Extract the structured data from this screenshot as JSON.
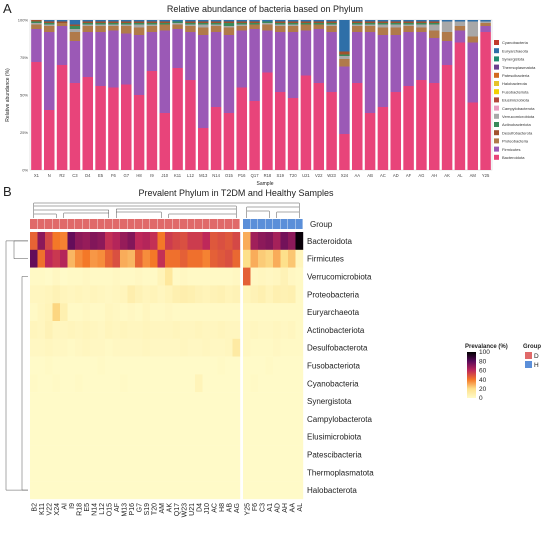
{
  "figure": {
    "panel_a_label": "A",
    "panel_b_label": "B"
  },
  "chart_data": [
    {
      "type": "bar",
      "stacked": true,
      "title": "Relative abundance of bacteria based on Phylum",
      "xlabel": "Sample",
      "ylabel": "Relative abundance (%)",
      "ylim": [
        0,
        100
      ],
      "yticks": [
        "0%",
        "25%",
        "50%",
        "75%",
        "100%"
      ],
      "categories": [
        "X1",
        "N",
        "R2",
        "C3",
        "D4",
        "E5",
        "F6",
        "G7",
        "H8",
        "I9",
        "J10",
        "K11",
        "L12",
        "M13",
        "N14",
        "O15",
        "P16",
        "Q17",
        "R18",
        "S19",
        "T20",
        "U21",
        "V22",
        "W23",
        "X24",
        "AA",
        "AB",
        "AC",
        "AD",
        "AF",
        "AG",
        "AH",
        "AK",
        "AL",
        "AM",
        "Y25"
      ],
      "legend_position": "right",
      "legend": [
        {
          "name": "Cyanobacteria",
          "color": "#c0392b"
        },
        {
          "name": "Euryarchaeota",
          "color": "#2e6fa8"
        },
        {
          "name": "Synergistota",
          "color": "#1f8a70"
        },
        {
          "name": "Thermoplasmatota",
          "color": "#6b3f8f"
        },
        {
          "name": "Patescibacteria",
          "color": "#d2691e"
        },
        {
          "name": "Halobacterota",
          "color": "#e6c229"
        },
        {
          "name": "Fusobacteriota",
          "color": "#f2d000"
        },
        {
          "name": "Elusimicrobiota",
          "color": "#b5473a"
        },
        {
          "name": "Campylobacterota",
          "color": "#e89bbf"
        },
        {
          "name": "Verrucomicrobiota",
          "color": "#a8a8a8"
        },
        {
          "name": "Actinobacteriota",
          "color": "#3a8a5a"
        },
        {
          "name": "Desulfobacterota",
          "color": "#a0522d"
        },
        {
          "name": "Proteobacteria",
          "color": "#b07a4a"
        },
        {
          "name": "Firmicutes",
          "color": "#9b59b6"
        },
        {
          "name": "Bacteroidota",
          "color": "#e8447a"
        }
      ],
      "series": [
        {
          "name": "Bacteroidota",
          "values": [
            72,
            40,
            70,
            58,
            62,
            56,
            55,
            57,
            50,
            66,
            38,
            68,
            60,
            28,
            42,
            38,
            55,
            46,
            65,
            52,
            48,
            63,
            58,
            52,
            24,
            58,
            38,
            42,
            52,
            56,
            60,
            58,
            70,
            85,
            45,
            92
          ]
        },
        {
          "name": "Firmicutes",
          "values": [
            22,
            52,
            26,
            28,
            30,
            36,
            38,
            34,
            40,
            26,
            55,
            26,
            32,
            62,
            50,
            52,
            38,
            48,
            28,
            40,
            44,
            30,
            36,
            40,
            45,
            34,
            54,
            48,
            38,
            36,
            32,
            30,
            16,
            8,
            40,
            4
          ]
        },
        {
          "name": "Proteobacteria",
          "values": [
            3,
            4,
            2,
            6,
            4,
            4,
            3,
            5,
            5,
            4,
            4,
            3,
            4,
            5,
            4,
            5,
            3,
            3,
            4,
            4,
            4,
            4,
            3,
            4,
            5,
            4,
            4,
            5,
            5,
            4,
            3,
            5,
            6,
            3,
            4,
            2
          ]
        },
        {
          "name": "Verrucomicrobiota",
          "values": [
            1,
            1,
            0,
            2,
            1,
            1,
            1,
            1,
            2,
            1,
            0,
            1,
            1,
            2,
            1,
            1,
            1,
            0,
            1,
            1,
            1,
            0,
            0,
            1,
            2,
            1,
            1,
            2,
            2,
            1,
            2,
            4,
            7,
            3,
            10,
            1
          ]
        },
        {
          "name": "Actinobacteriota",
          "values": [
            1,
            1,
            0,
            2,
            1,
            1,
            1,
            1,
            1,
            1,
            1,
            1,
            1,
            1,
            1,
            2,
            1,
            1,
            1,
            1,
            1,
            1,
            1,
            1,
            1,
            1,
            1,
            1,
            1,
            1,
            1,
            1,
            0,
            0,
            0,
            0
          ]
        },
        {
          "name": "Desulfobacterota",
          "values": [
            1,
            1,
            1,
            1,
            1,
            1,
            1,
            1,
            1,
            1,
            1,
            0,
            1,
            1,
            1,
            1,
            1,
            1,
            0,
            1,
            1,
            1,
            1,
            1,
            2,
            1,
            1,
            1,
            1,
            1,
            1,
            1,
            0,
            0,
            0,
            0
          ]
        },
        {
          "name": "Euryarchaeota",
          "values": [
            0,
            1,
            1,
            3,
            1,
            1,
            1,
            1,
            1,
            1,
            1,
            1,
            1,
            1,
            1,
            1,
            1,
            1,
            1,
            1,
            1,
            1,
            1,
            1,
            21,
            1,
            1,
            1,
            1,
            1,
            1,
            1,
            1,
            1,
            1,
            1
          ]
        }
      ]
    },
    {
      "type": "heatmap",
      "title": "Prevalent Phylum in T2DM and Healthy Samples",
      "columns": [
        "B2",
        "K11",
        "V22",
        "X24",
        "AI",
        "I9",
        "R18",
        "E5",
        "N14",
        "L12",
        "O15",
        "AF",
        "M13",
        "P16",
        "G7",
        "S19",
        "T20",
        "AM",
        "AK",
        "Q17",
        "W23",
        "U21",
        "D4",
        "J10",
        "AC",
        "H8",
        "AB",
        "AG",
        "Y25",
        "F6",
        "C3",
        "A1",
        "AD",
        "AH",
        "AA",
        "AL"
      ],
      "group_row_label": "Group",
      "groups": [
        "D",
        "D",
        "D",
        "D",
        "D",
        "D",
        "D",
        "D",
        "D",
        "D",
        "D",
        "D",
        "D",
        "D",
        "D",
        "D",
        "D",
        "D",
        "D",
        "D",
        "D",
        "D",
        "D",
        "D",
        "D",
        "D",
        "D",
        "D",
        "H",
        "H",
        "H",
        "H",
        "H",
        "H",
        "H",
        "H"
      ],
      "group_legend": {
        "title": "Group",
        "items": [
          {
            "name": "D",
            "color": "#e06a6a"
          },
          {
            "name": "H",
            "color": "#5b8fd9"
          }
        ]
      },
      "colorbar": {
        "title": "Prevalance (%)",
        "ticks": [
          0,
          20,
          40,
          60,
          80,
          100
        ]
      },
      "rows": [
        "Bacteroidota",
        "Firmicutes",
        "Verrucomicrobiota",
        "Proteobacteria",
        "Euryarchaeota",
        "Actinobacteriota",
        "Desulfobacterota",
        "Fusobacteriota",
        "Cyanobacteria",
        "Synergistota",
        "Campylobacterota",
        "Elusimicrobiota",
        "Patescibacteria",
        "Thermoplasmatota",
        "Halobacterota"
      ],
      "values": [
        [
          45,
          70,
          52,
          40,
          38,
          78,
          70,
          68,
          72,
          70,
          58,
          62,
          68,
          72,
          60,
          62,
          58,
          40,
          55,
          52,
          50,
          55,
          55,
          60,
          48,
          50,
          48,
          52,
          30,
          66,
          70,
          72,
          65,
          75,
          70,
          98
        ],
        [
          78,
          42,
          60,
          56,
          62,
          28,
          36,
          40,
          34,
          36,
          45,
          50,
          30,
          28,
          45,
          36,
          40,
          58,
          42,
          42,
          46,
          42,
          42,
          38,
          46,
          48,
          50,
          44,
          20,
          30,
          24,
          22,
          30,
          20,
          25,
          4
        ],
        [
          1,
          1,
          0,
          2,
          0,
          1,
          1,
          2,
          1,
          1,
          1,
          2,
          1,
          1,
          2,
          1,
          1,
          5,
          14,
          1,
          2,
          1,
          1,
          1,
          1,
          1,
          1,
          2,
          46,
          2,
          3,
          2,
          3,
          6,
          2,
          1
        ],
        [
          3,
          3,
          4,
          6,
          4,
          3,
          4,
          3,
          4,
          3,
          2,
          3,
          4,
          9,
          6,
          4,
          5,
          3,
          5,
          8,
          9,
          8,
          6,
          5,
          6,
          7,
          5,
          6,
          4,
          6,
          8,
          5,
          8,
          7,
          8,
          1
        ],
        [
          1,
          3,
          5,
          22,
          8,
          1,
          1,
          2,
          1,
          1,
          3,
          2,
          1,
          2,
          1,
          3,
          1,
          1,
          2,
          1,
          1,
          1,
          1,
          1,
          1,
          1,
          1,
          1,
          1,
          1,
          1,
          1,
          1,
          1,
          1,
          1
        ],
        [
          4,
          3,
          6,
          3,
          3,
          4,
          3,
          4,
          3,
          2,
          4,
          3,
          4,
          3,
          3,
          4,
          3,
          3,
          3,
          4,
          3,
          3,
          4,
          3,
          3,
          4,
          3,
          3,
          2,
          3,
          2,
          2,
          3,
          2,
          3,
          1
        ],
        [
          2,
          2,
          3,
          2,
          2,
          1,
          2,
          3,
          2,
          2,
          1,
          2,
          2,
          2,
          2,
          3,
          2,
          2,
          2,
          2,
          3,
          2,
          2,
          3,
          2,
          2,
          3,
          12,
          2,
          1,
          1,
          1,
          2,
          1,
          1,
          1
        ],
        [
          0,
          0,
          1,
          0,
          0,
          0,
          0,
          0,
          0,
          1,
          0,
          0,
          0,
          0,
          0,
          0,
          0,
          0,
          0,
          0,
          0,
          0,
          0,
          0,
          0,
          1,
          0,
          0,
          0,
          0,
          0,
          1,
          0,
          0,
          0,
          0
        ],
        [
          1,
          0,
          0,
          1,
          0,
          0,
          1,
          0,
          0,
          0,
          0,
          0,
          1,
          0,
          0,
          0,
          0,
          0,
          0,
          0,
          0,
          0,
          5,
          0,
          0,
          0,
          0,
          0,
          0,
          1,
          0,
          0,
          0,
          0,
          0,
          0
        ],
        [
          0,
          0,
          0,
          0,
          0,
          0,
          0,
          0,
          0,
          0,
          0,
          0,
          0,
          0,
          0,
          0,
          0,
          0,
          0,
          0,
          0,
          0,
          0,
          0,
          0,
          0,
          0,
          0,
          0,
          0,
          0,
          0,
          0,
          0,
          0,
          0
        ],
        [
          0,
          0,
          0,
          0,
          0,
          0,
          0,
          0,
          0,
          0,
          0,
          0,
          0,
          0,
          0,
          0,
          0,
          0,
          0,
          0,
          0,
          0,
          0,
          0,
          0,
          0,
          0,
          0,
          0,
          0,
          0,
          0,
          0,
          0,
          0,
          0
        ],
        [
          0,
          0,
          0,
          0,
          0,
          0,
          0,
          0,
          0,
          0,
          0,
          0,
          0,
          0,
          0,
          0,
          0,
          0,
          0,
          0,
          0,
          0,
          0,
          0,
          0,
          0,
          0,
          0,
          0,
          0,
          0,
          0,
          0,
          0,
          0,
          0
        ],
        [
          0,
          0,
          0,
          0,
          0,
          0,
          0,
          0,
          0,
          0,
          0,
          0,
          0,
          0,
          0,
          0,
          0,
          0,
          0,
          0,
          0,
          0,
          0,
          0,
          0,
          0,
          0,
          0,
          0,
          0,
          0,
          0,
          0,
          0,
          0,
          0
        ],
        [
          0,
          0,
          0,
          0,
          0,
          0,
          0,
          0,
          0,
          0,
          0,
          0,
          0,
          0,
          0,
          0,
          0,
          0,
          0,
          0,
          0,
          0,
          0,
          0,
          0,
          0,
          0,
          0,
          0,
          0,
          0,
          0,
          0,
          0,
          0,
          0
        ],
        [
          0,
          0,
          0,
          0,
          0,
          0,
          0,
          0,
          0,
          0,
          0,
          0,
          0,
          0,
          0,
          0,
          0,
          0,
          0,
          0,
          0,
          0,
          0,
          0,
          0,
          0,
          0,
          0,
          0,
          0,
          0,
          0,
          0,
          0,
          0,
          0
        ]
      ]
    }
  ]
}
